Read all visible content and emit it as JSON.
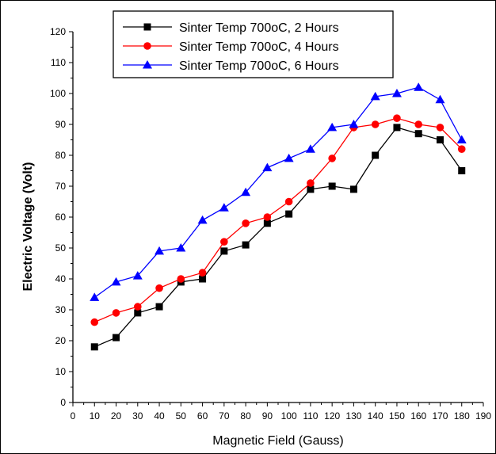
{
  "chart_data": {
    "type": "line",
    "title": "",
    "xlabel": "Magnetic Field (Gauss)",
    "ylabel": "Electric Voltage (Volt)",
    "xlim": [
      0,
      190
    ],
    "ylim": [
      0,
      120
    ],
    "x_ticks": [
      0,
      10,
      20,
      30,
      40,
      50,
      60,
      70,
      80,
      90,
      100,
      110,
      120,
      130,
      140,
      150,
      160,
      170,
      180,
      190
    ],
    "y_ticks": [
      0,
      10,
      20,
      30,
      40,
      50,
      60,
      70,
      80,
      90,
      100,
      110,
      120
    ],
    "grid": false,
    "legend_position": "top-center",
    "x": [
      10,
      20,
      30,
      40,
      50,
      60,
      70,
      80,
      90,
      100,
      110,
      120,
      130,
      140,
      150,
      160,
      170,
      180
    ],
    "series": [
      {
        "name": "Sinter Temp 700oC, 2 Hours",
        "color": "#000000",
        "marker": "square",
        "values": [
          18,
          21,
          29,
          31,
          39,
          40,
          49,
          51,
          58,
          61,
          69,
          70,
          69,
          80,
          89,
          87,
          85,
          75
        ]
      },
      {
        "name": "Sinter Temp 700oC, 4 Hours",
        "color": "#ff0000",
        "marker": "circle",
        "values": [
          26,
          29,
          31,
          37,
          40,
          42,
          52,
          58,
          60,
          65,
          71,
          79,
          89,
          90,
          92,
          90,
          89,
          82
        ]
      },
      {
        "name": "Sinter Temp 700oC, 6 Hours",
        "color": "#0000ff",
        "marker": "triangle",
        "values": [
          34,
          39,
          41,
          49,
          50,
          59,
          63,
          68,
          76,
          79,
          82,
          89,
          90,
          99,
          100,
          102,
          98,
          85
        ]
      }
    ]
  }
}
